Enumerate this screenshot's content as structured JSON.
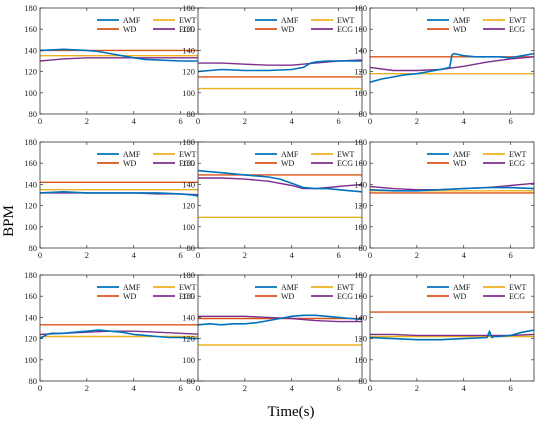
{
  "figure": {
    "ylabel": "BPM",
    "xlabel": "Time(s)"
  },
  "colors": {
    "AMF": "#0072BD",
    "WD": "#D95319",
    "EWT": "#EDB120",
    "ECG": "#7E2F8E"
  },
  "legend_labels": {
    "AMF": "AMF",
    "WD": "WD",
    "EWT": "EWT",
    "ECG": "ECG"
  },
  "chart_data": [
    {
      "type": "line",
      "xlim": [
        0,
        7
      ],
      "ylim": [
        80,
        180
      ],
      "xticks": [
        0,
        2,
        4,
        6
      ],
      "yticks": [
        80,
        100,
        120,
        140,
        160,
        180
      ],
      "legend": "top",
      "series": [
        {
          "name": "AMF",
          "x": [
            0,
            0.5,
            1,
            1.5,
            2,
            2.5,
            3,
            3.5,
            4,
            4.5,
            5,
            5.5,
            6,
            6.5,
            7
          ],
          "y": [
            140,
            140.5,
            141,
            140.5,
            140,
            139,
            137,
            135,
            133,
            131.5,
            131,
            130.5,
            130,
            130,
            130
          ]
        },
        {
          "name": "WD",
          "x": [
            0,
            7
          ],
          "y": [
            140,
            140
          ]
        },
        {
          "name": "EWT",
          "x": [
            0,
            7
          ],
          "y": [
            135,
            135
          ]
        },
        {
          "name": "ECG",
          "x": [
            0,
            0.5,
            1,
            2,
            3,
            4,
            5,
            6,
            7
          ],
          "y": [
            130,
            131,
            132,
            133,
            133,
            133,
            133,
            133,
            133
          ]
        }
      ]
    },
    {
      "type": "line",
      "xlim": [
        0,
        7
      ],
      "ylim": [
        80,
        180
      ],
      "xticks": [
        0,
        2,
        4,
        6
      ],
      "yticks": [
        80,
        100,
        120,
        140,
        160,
        180
      ],
      "legend": "top",
      "series": [
        {
          "name": "AMF",
          "x": [
            0,
            0.5,
            1,
            2,
            3,
            4,
            4.5,
            4.8,
            5,
            5.5,
            6,
            6.5,
            7
          ],
          "y": [
            120,
            121,
            122,
            121,
            121,
            122,
            124,
            128,
            129,
            130,
            130,
            130,
            130
          ]
        },
        {
          "name": "WD",
          "x": [
            0,
            7
          ],
          "y": [
            115,
            115
          ]
        },
        {
          "name": "EWT",
          "x": [
            0,
            7
          ],
          "y": [
            104,
            104
          ]
        },
        {
          "name": "ECG",
          "x": [
            0,
            1,
            2,
            3,
            4,
            5,
            6,
            7
          ],
          "y": [
            128,
            128,
            127,
            126,
            126,
            128,
            130,
            131
          ]
        }
      ]
    },
    {
      "type": "line",
      "xlim": [
        0,
        7
      ],
      "ylim": [
        80,
        180
      ],
      "xticks": [
        0,
        2,
        4,
        6
      ],
      "yticks": [
        80,
        100,
        120,
        140,
        160,
        180
      ],
      "legend": "top",
      "series": [
        {
          "name": "AMF",
          "x": [
            0,
            0.5,
            1,
            1.5,
            2,
            2.5,
            3,
            3.4,
            3.5,
            3.6,
            4,
            4.5,
            5,
            5.5,
            6,
            6.5,
            7
          ],
          "y": [
            110,
            113,
            115,
            117,
            118,
            120,
            122,
            124,
            136,
            137,
            135,
            134,
            134,
            134,
            133,
            135,
            137
          ]
        },
        {
          "name": "WD",
          "x": [
            0,
            7
          ],
          "y": [
            134,
            134
          ]
        },
        {
          "name": "EWT",
          "x": [
            0,
            7
          ],
          "y": [
            118,
            118
          ]
        },
        {
          "name": "ECG",
          "x": [
            0,
            1,
            2,
            3,
            4,
            5,
            6,
            7
          ],
          "y": [
            124,
            121,
            121,
            122,
            125,
            129,
            132,
            134
          ]
        }
      ]
    },
    {
      "type": "line",
      "xlim": [
        0,
        7
      ],
      "ylim": [
        80,
        180
      ],
      "xticks": [
        0,
        2,
        4,
        6
      ],
      "yticks": [
        80,
        100,
        120,
        140,
        160,
        180
      ],
      "legend": "top",
      "series": [
        {
          "name": "AMF",
          "x": [
            0,
            1,
            2,
            3,
            4,
            5,
            6,
            6.5,
            7
          ],
          "y": [
            132,
            133,
            132,
            132,
            132,
            132,
            131,
            130,
            128
          ]
        },
        {
          "name": "WD",
          "x": [
            0,
            7
          ],
          "y": [
            142,
            142
          ]
        },
        {
          "name": "EWT",
          "x": [
            0,
            7
          ],
          "y": [
            135,
            135
          ]
        },
        {
          "name": "ECG",
          "x": [
            0,
            1,
            2,
            3,
            4,
            5,
            6,
            7
          ],
          "y": [
            132,
            132,
            132,
            132,
            132,
            131,
            131,
            130
          ]
        }
      ]
    },
    {
      "type": "line",
      "xlim": [
        0,
        7
      ],
      "ylim": [
        80,
        180
      ],
      "xticks": [
        0,
        2,
        4,
        6
      ],
      "yticks": [
        80,
        100,
        120,
        140,
        160,
        180
      ],
      "legend": "top",
      "series": [
        {
          "name": "AMF",
          "x": [
            0,
            0.5,
            1,
            2,
            3,
            3.5,
            4,
            4.5,
            5,
            5.5,
            6,
            6.5,
            7
          ],
          "y": [
            153,
            152,
            151,
            149,
            147,
            145,
            141,
            137,
            136,
            136,
            135,
            134,
            133
          ]
        },
        {
          "name": "WD",
          "x": [
            0,
            7
          ],
          "y": [
            149,
            149
          ]
        },
        {
          "name": "EWT",
          "x": [
            0,
            7
          ],
          "y": [
            109,
            109
          ]
        },
        {
          "name": "ECG",
          "x": [
            0,
            1,
            2,
            3,
            4,
            4.5,
            5,
            5.5,
            6,
            7
          ],
          "y": [
            146,
            146,
            145,
            143,
            139,
            136,
            136,
            137,
            138,
            140
          ]
        }
      ]
    },
    {
      "type": "line",
      "xlim": [
        0,
        7
      ],
      "ylim": [
        80,
        180
      ],
      "xticks": [
        0,
        2,
        4,
        6
      ],
      "yticks": [
        80,
        100,
        120,
        140,
        160,
        180
      ],
      "legend": "top",
      "series": [
        {
          "name": "AMF",
          "x": [
            0,
            1,
            2,
            3,
            4,
            5,
            6,
            7
          ],
          "y": [
            135,
            134,
            134,
            135,
            136,
            137,
            137,
            136
          ]
        },
        {
          "name": "WD",
          "x": [
            0,
            7
          ],
          "y": [
            132,
            132
          ]
        },
        {
          "name": "EWT",
          "x": [
            0,
            7
          ],
          "y": [
            134,
            134
          ]
        },
        {
          "name": "ECG",
          "x": [
            0,
            1,
            2,
            3,
            4,
            5,
            6,
            7
          ],
          "y": [
            138,
            136,
            135,
            135,
            136,
            137,
            139,
            141
          ]
        }
      ]
    },
    {
      "type": "line",
      "xlim": [
        0,
        7
      ],
      "ylim": [
        80,
        180
      ],
      "xticks": [
        0,
        2,
        4,
        6
      ],
      "yticks": [
        80,
        100,
        120,
        140,
        160,
        180
      ],
      "legend": "top",
      "series": [
        {
          "name": "AMF",
          "x": [
            0,
            0.3,
            0.5,
            1,
            1.5,
            2,
            2.5,
            3,
            3.5,
            4,
            4.5,
            5,
            5.5,
            6,
            6.5,
            7
          ],
          "y": [
            120,
            124,
            125,
            125,
            126,
            127,
            128,
            127,
            126,
            124,
            123,
            122,
            121,
            121,
            120,
            120
          ]
        },
        {
          "name": "WD",
          "x": [
            0,
            7
          ],
          "y": [
            133,
            133
          ]
        },
        {
          "name": "EWT",
          "x": [
            0,
            7
          ],
          "y": [
            122,
            122
          ]
        },
        {
          "name": "ECG",
          "x": [
            0,
            1,
            2,
            3,
            4,
            5,
            6,
            7
          ],
          "y": [
            124,
            125,
            126,
            127,
            127,
            126,
            125,
            124
          ]
        }
      ]
    },
    {
      "type": "line",
      "xlim": [
        0,
        7
      ],
      "ylim": [
        80,
        180
      ],
      "xticks": [
        0,
        2,
        4,
        6
      ],
      "yticks": [
        80,
        100,
        120,
        140,
        160,
        180
      ],
      "legend": "top",
      "series": [
        {
          "name": "AMF",
          "x": [
            0,
            0.5,
            1,
            1.5,
            2,
            2.5,
            3,
            3.5,
            4,
            4.5,
            5,
            5.5,
            6,
            6.5,
            7
          ],
          "y": [
            133,
            134,
            133,
            134,
            134,
            135,
            137,
            139,
            141,
            142,
            142,
            141,
            140,
            139,
            138
          ]
        },
        {
          "name": "WD",
          "x": [
            0,
            7
          ],
          "y": [
            139,
            139
          ]
        },
        {
          "name": "EWT",
          "x": [
            0,
            7
          ],
          "y": [
            114,
            114
          ]
        },
        {
          "name": "ECG",
          "x": [
            0,
            1,
            2,
            3,
            4,
            5,
            6,
            7
          ],
          "y": [
            141,
            141,
            141,
            140,
            139,
            137,
            136,
            136
          ]
        }
      ]
    },
    {
      "type": "line",
      "xlim": [
        0,
        7
      ],
      "ylim": [
        80,
        180
      ],
      "xticks": [
        0,
        2,
        4,
        6
      ],
      "yticks": [
        80,
        100,
        120,
        140,
        160,
        180
      ],
      "legend": "top",
      "series": [
        {
          "name": "AMF",
          "x": [
            0,
            1,
            2,
            3,
            4,
            5,
            5.1,
            5.2,
            5.3,
            5.5,
            6,
            6.5,
            7
          ],
          "y": [
            121,
            120,
            119,
            119,
            120,
            121,
            127,
            121,
            122,
            122,
            123,
            126,
            128
          ]
        },
        {
          "name": "WD",
          "x": [
            0,
            7
          ],
          "y": [
            145,
            145
          ]
        },
        {
          "name": "EWT",
          "x": [
            0,
            7
          ],
          "y": [
            122,
            122
          ]
        },
        {
          "name": "ECG",
          "x": [
            0,
            1,
            2,
            3,
            4,
            5,
            6,
            7
          ],
          "y": [
            124,
            124,
            123,
            123,
            123,
            123,
            123,
            124
          ]
        }
      ]
    }
  ]
}
